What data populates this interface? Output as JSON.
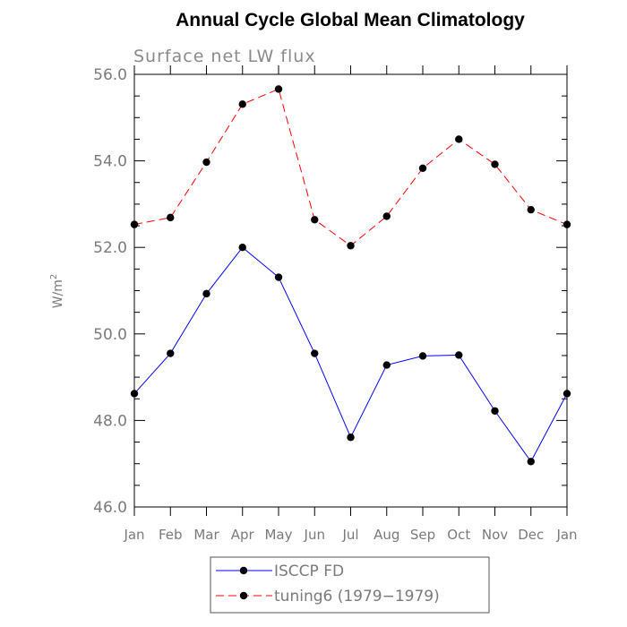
{
  "chart_data": {
    "type": "line",
    "title": "Annual Cycle Global Mean Climatology",
    "subtitle": "Surface net LW flux",
    "ylabel": "W/m",
    "ylabel_superscript": "2",
    "xlabel": "",
    "categories": [
      "Jan",
      "Feb",
      "Mar",
      "Apr",
      "May",
      "Jun",
      "Jul",
      "Aug",
      "Sep",
      "Oct",
      "Nov",
      "Dec",
      "Jan"
    ],
    "ylim": [
      46.0,
      56.0
    ],
    "yticks": [
      "46.0",
      "48.0",
      "50.0",
      "52.0",
      "54.0",
      "56.0"
    ],
    "grid": false,
    "legend_position": "bottom",
    "series": [
      {
        "name": "ISCCP FD",
        "color": "#0000ff",
        "line_style": "solid",
        "marker": "circle",
        "values": [
          48.62,
          49.55,
          50.93,
          52.0,
          51.31,
          49.55,
          47.61,
          49.28,
          49.49,
          49.51,
          48.22,
          47.05,
          48.62
        ]
      },
      {
        "name": "tuning6 (1979−1979)",
        "color": "#ff0000",
        "line_style": "dashed",
        "marker": "circle",
        "values": [
          52.53,
          52.69,
          53.97,
          55.31,
          55.66,
          52.64,
          52.04,
          52.72,
          53.83,
          54.5,
          53.92,
          52.87,
          52.53
        ]
      }
    ]
  }
}
